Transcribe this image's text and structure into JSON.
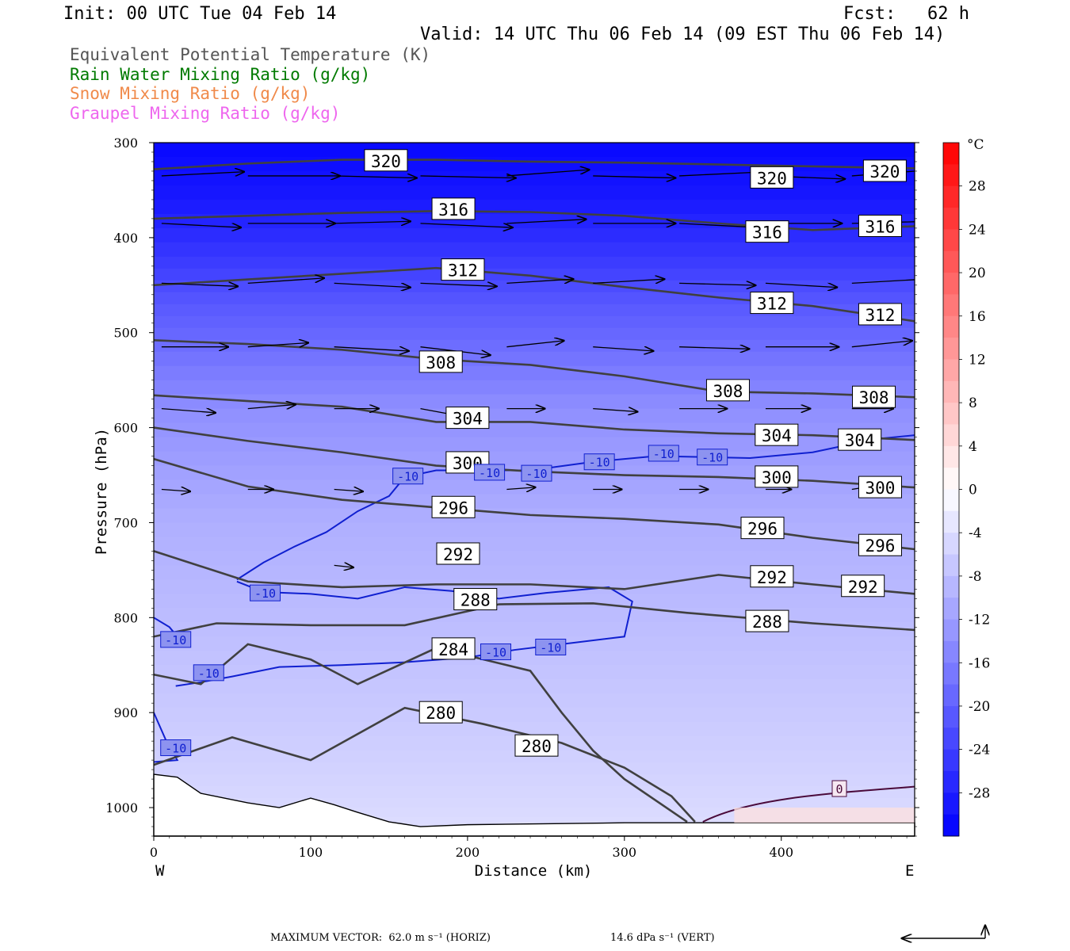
{
  "header": {
    "init": "Init: 00 UTC Tue 04 Feb 14",
    "fcst": "Fcst:   62 h",
    "valid": "Valid: 14 UTC Thu 06 Feb 14 (09 EST Thu 06 Feb 14)"
  },
  "legend": [
    {
      "label": "Equivalent Potential Temperature (K)",
      "color": "#555555"
    },
    {
      "label": "Rain Water Mixing Ratio (g/kg)",
      "color": "#007a00"
    },
    {
      "label": "Snow Mixing Ratio (g/kg)",
      "color": "#f08a4a"
    },
    {
      "label": "Graupel Mixing Ratio (g/kg)",
      "color": "#ee66ee"
    }
  ],
  "footer": {
    "max_vector": "MAXIMUM VECTOR:  62.0 m s⁻¹ (HORIZ)",
    "vert": "14.6 dPa s⁻¹ (VERT)"
  },
  "chart_data": {
    "type": "cross-section",
    "xlabel": "Distance (km)",
    "ylabel": "Pressure (hPa)",
    "xlim": [
      0,
      485
    ],
    "ylim": [
      300,
      1030
    ],
    "y_reversed": true,
    "x_ticks": [
      0,
      100,
      200,
      300,
      400
    ],
    "y_ticks": [
      300,
      400,
      500,
      600,
      700,
      800,
      900,
      1000
    ],
    "x_end_labels": {
      "left": "W",
      "right": "E"
    },
    "colorbar": {
      "unit": "°C",
      "tick_labels": [
        "28",
        "24",
        "20",
        "16",
        "12",
        "8",
        "4",
        "0",
        "-4",
        "-8",
        "-12",
        "-16",
        "-20",
        "-24",
        "-28"
      ],
      "tick_values": [
        28,
        24,
        20,
        16,
        12,
        8,
        4,
        0,
        -4,
        -8,
        -12,
        -16,
        -20,
        -24,
        -28
      ],
      "range": [
        -32,
        32
      ]
    },
    "temperature_shading": [
      {
        "p": 300,
        "t": -31
      },
      {
        "p": 360,
        "t": -29
      },
      {
        "p": 420,
        "t": -25
      },
      {
        "p": 470,
        "t": -21
      },
      {
        "p": 520,
        "t": -18
      },
      {
        "p": 580,
        "t": -14
      },
      {
        "p": 640,
        "t": -12
      },
      {
        "p": 700,
        "t": -10
      },
      {
        "p": 760,
        "t": -9
      },
      {
        "p": 820,
        "t": -8
      },
      {
        "p": 880,
        "t": -7
      },
      {
        "p": 940,
        "t": -6
      },
      {
        "p": 990,
        "t": -5
      },
      {
        "p": 1030,
        "t": -4
      }
    ],
    "theta_e_series": [
      {
        "name": "320",
        "label_points": [
          [
            148,
            319
          ],
          [
            394,
            337
          ],
          [
            466,
            330
          ]
        ],
        "points": [
          [
            0,
            328
          ],
          [
            60,
            322
          ],
          [
            120,
            318
          ],
          [
            180,
            318
          ],
          [
            240,
            320
          ],
          [
            300,
            321
          ],
          [
            360,
            323
          ],
          [
            420,
            325
          ],
          [
            485,
            327
          ]
        ]
      },
      {
        "name": "316",
        "label_points": [
          [
            191,
            370
          ],
          [
            391,
            394
          ],
          [
            463,
            388
          ]
        ],
        "points": [
          [
            0,
            380
          ],
          [
            60,
            377
          ],
          [
            120,
            374
          ],
          [
            180,
            372
          ],
          [
            240,
            373
          ],
          [
            300,
            377
          ],
          [
            360,
            385
          ],
          [
            420,
            392
          ],
          [
            485,
            388
          ]
        ]
      },
      {
        "name": "312",
        "label_points": [
          [
            197,
            434
          ],
          [
            394,
            469
          ],
          [
            463,
            481
          ]
        ],
        "points": [
          [
            0,
            450
          ],
          [
            60,
            444
          ],
          [
            120,
            438
          ],
          [
            180,
            432
          ],
          [
            240,
            440
          ],
          [
            300,
            452
          ],
          [
            360,
            463
          ],
          [
            420,
            472
          ],
          [
            485,
            488
          ]
        ]
      },
      {
        "name": "308",
        "label_points": [
          [
            183,
            531
          ],
          [
            366,
            561
          ],
          [
            459,
            568
          ]
        ],
        "points": [
          [
            0,
            508
          ],
          [
            60,
            512
          ],
          [
            120,
            518
          ],
          [
            180,
            528
          ],
          [
            240,
            534
          ],
          [
            300,
            546
          ],
          [
            360,
            562
          ],
          [
            420,
            564
          ],
          [
            485,
            568
          ]
        ]
      },
      {
        "name": "304",
        "label_points": [
          [
            200,
            590
          ],
          [
            397,
            608
          ],
          [
            450,
            613
          ]
        ],
        "points": [
          [
            0,
            566
          ],
          [
            60,
            572
          ],
          [
            120,
            578
          ],
          [
            180,
            594
          ],
          [
            240,
            594
          ],
          [
            300,
            602
          ],
          [
            360,
            606
          ],
          [
            420,
            608
          ],
          [
            485,
            613
          ]
        ]
      },
      {
        "name": "300",
        "label_points": [
          [
            200,
            637
          ],
          [
            397,
            652
          ],
          [
            463,
            663
          ]
        ],
        "points": [
          [
            0,
            600
          ],
          [
            60,
            614
          ],
          [
            120,
            626
          ],
          [
            180,
            640
          ],
          [
            240,
            646
          ],
          [
            300,
            650
          ],
          [
            360,
            652
          ],
          [
            420,
            656
          ],
          [
            485,
            663
          ]
        ]
      },
      {
        "name": "296",
        "label_points": [
          [
            191,
            684
          ],
          [
            388,
            706
          ],
          [
            463,
            724
          ]
        ],
        "points": [
          [
            0,
            633
          ],
          [
            60,
            662
          ],
          [
            120,
            676
          ],
          [
            180,
            684
          ],
          [
            240,
            692
          ],
          [
            300,
            696
          ],
          [
            360,
            702
          ],
          [
            420,
            716
          ],
          [
            485,
            728
          ]
        ]
      },
      {
        "name": "292",
        "label_points": [
          [
            194,
            733
          ],
          [
            394,
            757
          ],
          [
            452,
            767
          ]
        ],
        "points": [
          [
            0,
            730
          ],
          [
            60,
            762
          ],
          [
            120,
            768
          ],
          [
            180,
            765
          ],
          [
            240,
            765
          ],
          [
            300,
            770
          ],
          [
            360,
            755
          ],
          [
            420,
            765
          ],
          [
            485,
            775
          ]
        ]
      },
      {
        "name": "288",
        "label_points": [
          [
            205,
            781
          ],
          [
            391,
            804
          ]
        ],
        "points": [
          [
            0,
            820
          ],
          [
            40,
            806
          ],
          [
            100,
            808
          ],
          [
            160,
            808
          ],
          [
            220,
            786
          ],
          [
            280,
            785
          ],
          [
            340,
            795
          ],
          [
            420,
            806
          ],
          [
            485,
            813
          ]
        ]
      },
      {
        "name": "284",
        "label_points": [
          [
            191,
            833
          ]
        ],
        "points": [
          [
            0,
            860
          ],
          [
            30,
            870
          ],
          [
            60,
            828
          ],
          [
            100,
            844
          ],
          [
            130,
            870
          ],
          [
            180,
            832
          ],
          [
            240,
            856
          ],
          [
            260,
            900
          ],
          [
            280,
            940
          ],
          [
            300,
            970
          ],
          [
            340,
            1015
          ]
        ]
      },
      {
        "name": "280",
        "label_points": [
          [
            183,
            900
          ],
          [
            244,
            935
          ]
        ],
        "points": [
          [
            0,
            955
          ],
          [
            50,
            926
          ],
          [
            100,
            950
          ],
          [
            160,
            895
          ],
          [
            210,
            912
          ],
          [
            260,
            932
          ],
          [
            300,
            958
          ],
          [
            330,
            988
          ],
          [
            345,
            1015
          ]
        ]
      }
    ],
    "isotherm_labels": [
      {
        "text": "-10",
        "point": [
          162,
          651
        ]
      },
      {
        "text": "-10",
        "point": [
          214,
          647
        ]
      },
      {
        "text": "-10",
        "point": [
          244,
          648
        ]
      },
      {
        "text": "-10",
        "point": [
          284,
          636
        ]
      },
      {
        "text": "-10",
        "point": [
          325,
          627
        ]
      },
      {
        "text": "-10",
        "point": [
          356,
          631
        ]
      },
      {
        "text": "-10",
        "point": [
          71,
          774
        ]
      },
      {
        "text": "-10",
        "point": [
          14,
          823
        ]
      },
      {
        "text": "-10",
        "point": [
          35,
          858
        ]
      },
      {
        "text": "-10",
        "point": [
          218,
          836
        ]
      },
      {
        "text": "-10",
        "point": [
          253,
          831
        ]
      },
      {
        "text": "-10",
        "point": [
          14,
          937
        ]
      },
      {
        "text": "0",
        "point": [
          437,
          980
        ]
      }
    ]
  }
}
